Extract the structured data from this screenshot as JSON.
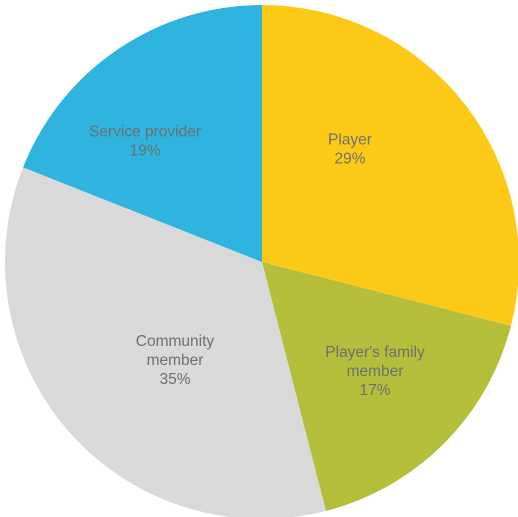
{
  "chart_data": {
    "type": "pie",
    "slices": [
      {
        "category_lines": [
          "Player"
        ],
        "value": 29,
        "percent_label": "29%",
        "color": "#FCC917"
      },
      {
        "category_lines": [
          "Player's family",
          "member"
        ],
        "value": 17,
        "percent_label": "17%",
        "color": "#B4BE3A"
      },
      {
        "category_lines": [
          "Community",
          "member"
        ],
        "value": 35,
        "percent_label": "35%",
        "color": "#D9D9D9"
      },
      {
        "category_lines": [
          "Service provider"
        ],
        "value": 19,
        "percent_label": "19%",
        "color": "#2FB4E0"
      }
    ],
    "start": "12 o'clock",
    "direction": "clockwise",
    "legend": "none",
    "label_color": "#6F6F6F"
  }
}
